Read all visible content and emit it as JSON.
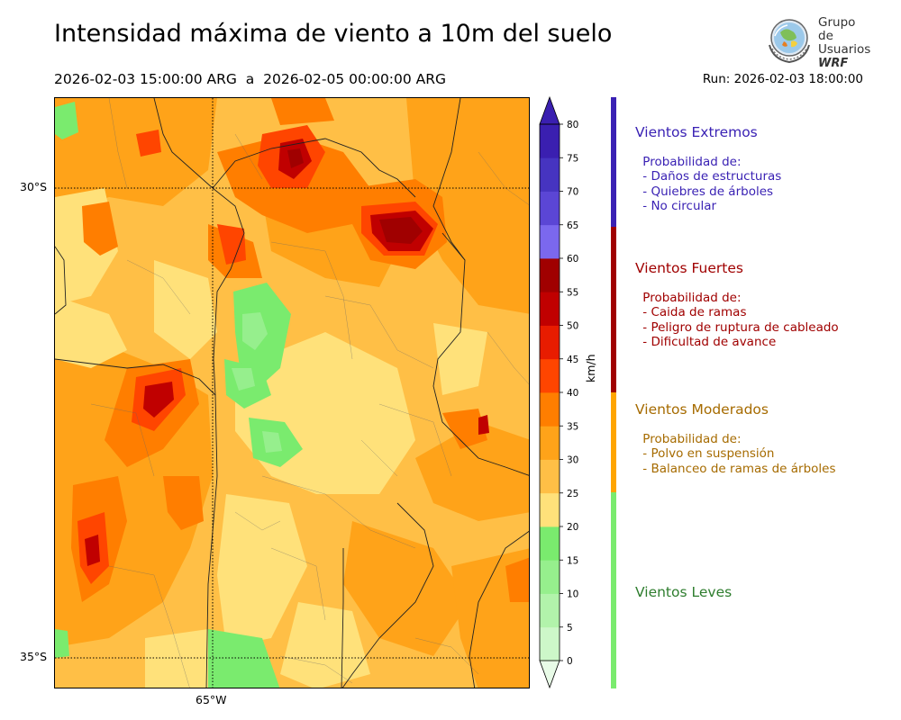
{
  "title": "Intensidad máxima de viento a 10m del suelo",
  "period": "2026-02-03 15:00:00 ARG  a  2026-02-05 00:00:00 ARG",
  "run": "Run: 2026-02-03 18:00:00",
  "logo": {
    "line1": "Grupo de",
    "line2": "Usuarios",
    "line3": "WRF",
    "icon": "globe-logo-icon"
  },
  "map": {
    "lat_labels": [
      "30°S",
      "35°S"
    ],
    "lon_labels": [
      "65°W"
    ],
    "gridlines": "dotted"
  },
  "colorbar": {
    "unit": "km/h",
    "ticks": [
      0,
      5,
      10,
      15,
      20,
      25,
      30,
      35,
      40,
      45,
      50,
      55,
      60,
      65,
      70,
      75,
      80
    ],
    "colors": [
      "#e8fbe7",
      "#cdf7c9",
      "#b2f3ab",
      "#96ef8d",
      "#7aeb6e",
      "#ffe17a",
      "#ffbf46",
      "#ffa319",
      "#ff7e00",
      "#ff4500",
      "#e81c00",
      "#c00000",
      "#a00000",
      "#7b68ee",
      "#5b46d5",
      "#4634c0",
      "#3a1fb0"
    ],
    "extend": "both"
  },
  "categories": [
    {
      "name": "Vientos Extremos",
      "color": "#3a22b4",
      "desc": " Probabilidad de:\n - Daños de estructuras\n - Quiebres de árboles\n - No circular"
    },
    {
      "name": "Vientos Fuertes",
      "color": "#a00000",
      "desc": " Probabilidad de:\n - Caida de ramas\n - Peligro de ruptura de cableado\n - Dificultad de avance"
    },
    {
      "name": "Vientos Moderados",
      "color": "#a66b00",
      "strip_color": "#ffa500",
      "desc": " Probabilidad de:\n - Polvo en suspensión\n - Balanceo de ramas de árboles"
    },
    {
      "name": "Vientos Leves",
      "color": "#2e7d2e",
      "strip_color": "#7aeb6e",
      "desc": ""
    }
  ]
}
